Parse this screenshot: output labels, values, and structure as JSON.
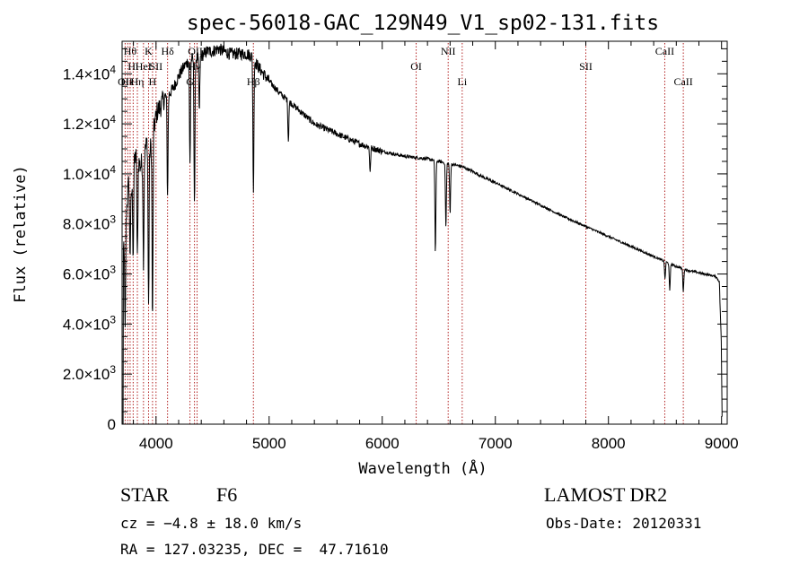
{
  "chart_data": {
    "type": "line",
    "title": "spec-56018-GAC_129N49_V1_sp02-131.fits",
    "xlabel": "Wavelength (Å)",
    "ylabel": "Flux (relative)",
    "xlim": [
      3700,
      9050
    ],
    "ylim": [
      0,
      15300
    ],
    "xticks": [
      4000,
      5000,
      6000,
      7000,
      8000,
      9000
    ],
    "xtick_labels": [
      "4000",
      "5000",
      "6000",
      "7000",
      "8000",
      "9000"
    ],
    "yticks": [
      {
        "value": 0,
        "mantissa": "0",
        "exp": ""
      },
      {
        "value": 2000,
        "mantissa": "2.0×10",
        "exp": "3"
      },
      {
        "value": 4000,
        "mantissa": "4.0×10",
        "exp": "3"
      },
      {
        "value": 6000,
        "mantissa": "6.0×10",
        "exp": "3"
      },
      {
        "value": 8000,
        "mantissa": "8.0×10",
        "exp": "3"
      },
      {
        "value": 10000,
        "mantissa": "1.0×10",
        "exp": "4"
      },
      {
        "value": 12000,
        "mantissa": "1.2×10",
        "exp": "4"
      },
      {
        "value": 14000,
        "mantissa": "1.4×10",
        "exp": "4"
      }
    ],
    "grid": false,
    "spectrum": {
      "x": [
        3700,
        3720,
        3740,
        3760,
        3780,
        3800,
        3830,
        3860,
        3890,
        3920,
        3950,
        3980,
        4010,
        4040,
        4070,
        4100,
        4150,
        4200,
        4250,
        4300,
        4350,
        4400,
        4450,
        4500,
        4550,
        4600,
        4650,
        4700,
        4750,
        4800,
        4850,
        4900,
        4950,
        5000,
        5100,
        5200,
        5300,
        5400,
        5500,
        5600,
        5700,
        5800,
        5900,
        6000,
        6100,
        6200,
        6300,
        6400,
        6450,
        6500,
        6550,
        6600,
        6650,
        6700,
        6800,
        6900,
        7000,
        7200,
        7400,
        7600,
        7800,
        8000,
        8200,
        8400,
        8500,
        8600,
        8700,
        8800,
        8900,
        8950,
        8980,
        9000
      ],
      "y": [
        5500,
        7800,
        8600,
        9800,
        8900,
        10500,
        10800,
        10300,
        10600,
        11300,
        11000,
        11800,
        12500,
        12700,
        13000,
        13100,
        13400,
        13900,
        14300,
        14600,
        14600,
        14700,
        14900,
        14900,
        15000,
        14900,
        14800,
        14800,
        14800,
        14800,
        14700,
        14300,
        14000,
        13700,
        13200,
        12800,
        12400,
        12000,
        11800,
        11600,
        11400,
        11200,
        11050,
        10900,
        10800,
        10700,
        10650,
        10600,
        10550,
        10500,
        10450,
        10400,
        10350,
        10300,
        10100,
        9850,
        9650,
        9200,
        8750,
        8300,
        7900,
        7500,
        7100,
        6700,
        6500,
        6300,
        6150,
        6050,
        5950,
        5900,
        5700,
        3000
      ]
    },
    "absorption_lines": [
      {
        "wavelength": 3727,
        "depth": 4500
      },
      {
        "wavelength": 3770,
        "depth": 2500
      },
      {
        "wavelength": 3798,
        "depth": 3500
      },
      {
        "wavelength": 3835,
        "depth": 4200
      },
      {
        "wavelength": 3889,
        "depth": 4000
      },
      {
        "wavelength": 3934,
        "depth": 6500
      },
      {
        "wavelength": 3969,
        "depth": 7500
      },
      {
        "wavelength": 4102,
        "depth": 4000
      },
      {
        "wavelength": 4300,
        "depth": 4200
      },
      {
        "wavelength": 4340,
        "depth": 5800
      },
      {
        "wavelength": 4383,
        "depth": 2200
      },
      {
        "wavelength": 4861,
        "depth": 5500
      },
      {
        "wavelength": 5170,
        "depth": 1600
      },
      {
        "wavelength": 5893,
        "depth": 1000
      },
      {
        "wavelength": 6470,
        "depth": 3700
      },
      {
        "wavelength": 6563,
        "depth": 2600
      },
      {
        "wavelength": 6600,
        "depth": 2000
      },
      {
        "wavelength": 8500,
        "depth": 700
      },
      {
        "wavelength": 8542,
        "depth": 1100
      },
      {
        "wavelength": 8662,
        "depth": 900
      }
    ],
    "annotations": [
      {
        "wavelength": 3727,
        "label": "OII",
        "row": 3
      },
      {
        "wavelength": 3750,
        "label": "Hκ",
        "row": 3
      },
      {
        "wavelength": 3771,
        "label": "Hθ",
        "row": 1
      },
      {
        "wavelength": 3798,
        "label": "Hι",
        "row": 2
      },
      {
        "wavelength": 3835,
        "label": "Hη",
        "row": 3
      },
      {
        "wavelength": 3889,
        "label": "HeI",
        "row": 2
      },
      {
        "wavelength": 3934,
        "label": "K",
        "row": 1
      },
      {
        "wavelength": 3969,
        "label": "H",
        "row": 3
      },
      {
        "wavelength": 4000,
        "label": "SII",
        "row": 2
      },
      {
        "wavelength": 4102,
        "label": "Hδ",
        "row": 1
      },
      {
        "wavelength": 4300,
        "label": "G",
        "row": 3
      },
      {
        "wavelength": 4340,
        "label": "Hγ",
        "row": 2
      },
      {
        "wavelength": 4363,
        "label": "OIII",
        "row": 1
      },
      {
        "wavelength": 4861,
        "label": "Hβ",
        "row": 3
      },
      {
        "wavelength": 6300,
        "label": "OI",
        "row": 2
      },
      {
        "wavelength": 6583,
        "label": "NII",
        "row": 1
      },
      {
        "wavelength": 6707,
        "label": "Li",
        "row": 3
      },
      {
        "wavelength": 7800,
        "label": "SII",
        "row": 2
      },
      {
        "wavelength": 8498,
        "label": "CaII",
        "row": 1
      },
      {
        "wavelength": 8662,
        "label": "CaII",
        "row": 3
      }
    ]
  },
  "info": {
    "object_class": "STAR",
    "subclass": "F6",
    "survey": "LAMOST DR2",
    "redshift_text": "cz = −4.8 ± 18.0 km/s",
    "obs_date_text": "Obs-Date: 20120331",
    "coords_text": "RA = 127.03235, DEC =  47.71610"
  },
  "colors": {
    "spectrum": "#000000",
    "line_markers": "#b22222",
    "axes": "#000000"
  }
}
